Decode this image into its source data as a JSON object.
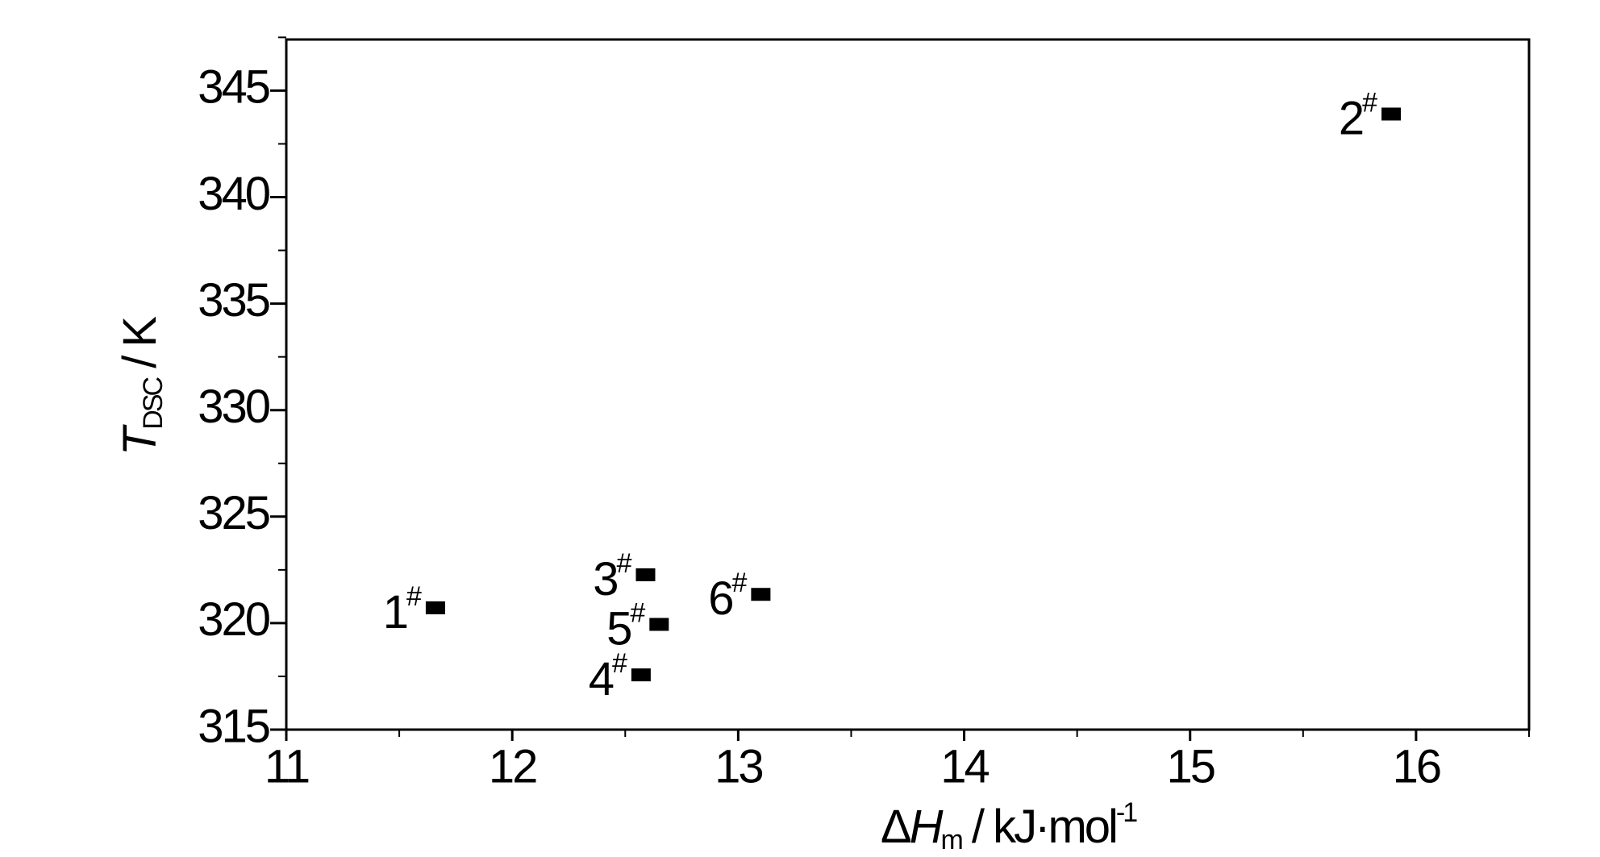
{
  "chart_data": {
    "type": "scatter",
    "x_label": {
      "delta": "Δ",
      "symbol": "H",
      "subscript": "m",
      "unit": " / kJ·mol",
      "superscript": "-1"
    },
    "y_label": {
      "symbol": "T",
      "subscript": "DSC",
      "unit": " / K"
    },
    "x": [
      11.66,
      15.89,
      12.59,
      12.57,
      12.65,
      13.1
    ],
    "values": [
      320.72,
      343.9,
      322.27,
      317.57,
      319.94,
      321.35
    ],
    "labels": [
      "1",
      "2",
      "3",
      "4",
      "5",
      "6"
    ],
    "label_superscript": "#",
    "color": "#000000",
    "xlim": [
      11,
      16.5
    ],
    "ylim": [
      315,
      347.4
    ],
    "xticks": [
      11,
      12,
      13,
      14,
      15,
      16
    ],
    "yticks": [
      315,
      320,
      325,
      330,
      335,
      340,
      345
    ],
    "minor_xticks": [
      11.5,
      12.5,
      13.5,
      14.5,
      15.5,
      16.5
    ],
    "minor_yticks": [
      317.5,
      322.5,
      327.5,
      332.5,
      337.5,
      342.5,
      347.5
    ],
    "grid": false
  }
}
